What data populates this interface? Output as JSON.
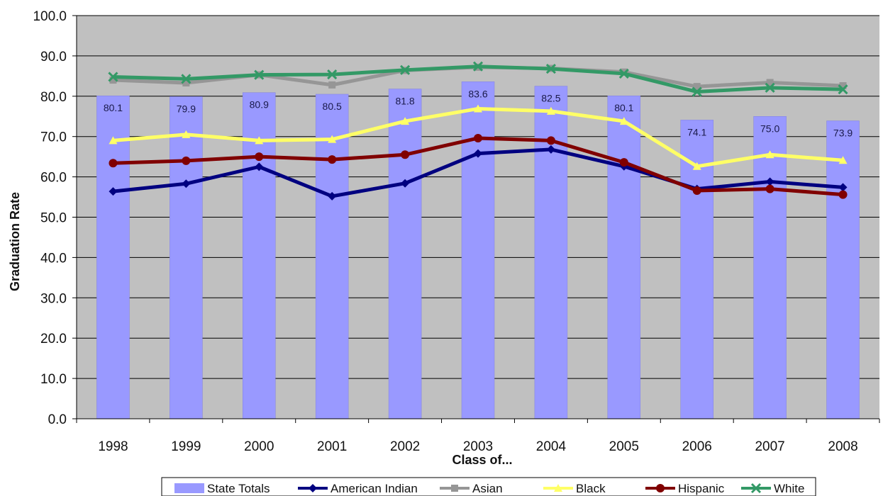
{
  "chart_data": {
    "type": "bar",
    "categories": [
      "1998",
      "1999",
      "2000",
      "2001",
      "2002",
      "2003",
      "2004",
      "2005",
      "2006",
      "2007",
      "2008"
    ],
    "ylim": [
      0,
      100
    ],
    "ytick_step": 10,
    "ytick_labels": [
      "0.0",
      "10.0",
      "20.0",
      "30.0",
      "40.0",
      "50.0",
      "60.0",
      "70.0",
      "80.0",
      "90.0",
      "100.0"
    ],
    "xlabel": "Class of...",
    "ylabel": "Graduation Rate",
    "grid": true,
    "legend_position": "bottom",
    "plot_background": "#c0c0c0",
    "bars": {
      "name": "State Totals",
      "color": "#9999ff",
      "values": [
        80.1,
        79.9,
        80.9,
        80.5,
        81.8,
        83.6,
        82.5,
        80.1,
        74.1,
        75.0,
        73.9
      ],
      "labels": [
        "80.1",
        "79.9",
        "80.9",
        "80.5",
        "81.8",
        "83.6",
        "82.5",
        "80.1",
        "74.1",
        "75.0",
        "73.9"
      ]
    },
    "series": [
      {
        "name": "American Indian",
        "color": "#000080",
        "marker": "diamond",
        "values": [
          56.4,
          58.3,
          62.5,
          55.2,
          58.4,
          65.8,
          66.8,
          62.6,
          57.0,
          58.8,
          57.4
        ]
      },
      {
        "name": "Asian",
        "color": "#969696",
        "marker": "square",
        "values": [
          84.0,
          83.3,
          85.3,
          82.8,
          86.4,
          87.2,
          86.9,
          86.0,
          82.4,
          83.4,
          82.6
        ]
      },
      {
        "name": "Black",
        "color": "#ffff66",
        "marker": "triangle",
        "values": [
          69.0,
          70.5,
          69.0,
          69.3,
          73.8,
          76.9,
          76.3,
          73.8,
          62.6,
          65.5,
          64.1
        ]
      },
      {
        "name": "Hispanic",
        "color": "#800000",
        "marker": "circle",
        "values": [
          63.4,
          64.0,
          65.0,
          64.3,
          65.5,
          69.6,
          69.0,
          63.6,
          56.6,
          57.0,
          55.6
        ]
      },
      {
        "name": "White",
        "color": "#339966",
        "marker": "x",
        "values": [
          84.8,
          84.3,
          85.3,
          85.4,
          86.5,
          87.4,
          86.8,
          85.6,
          81.1,
          82.1,
          81.7
        ]
      }
    ]
  }
}
